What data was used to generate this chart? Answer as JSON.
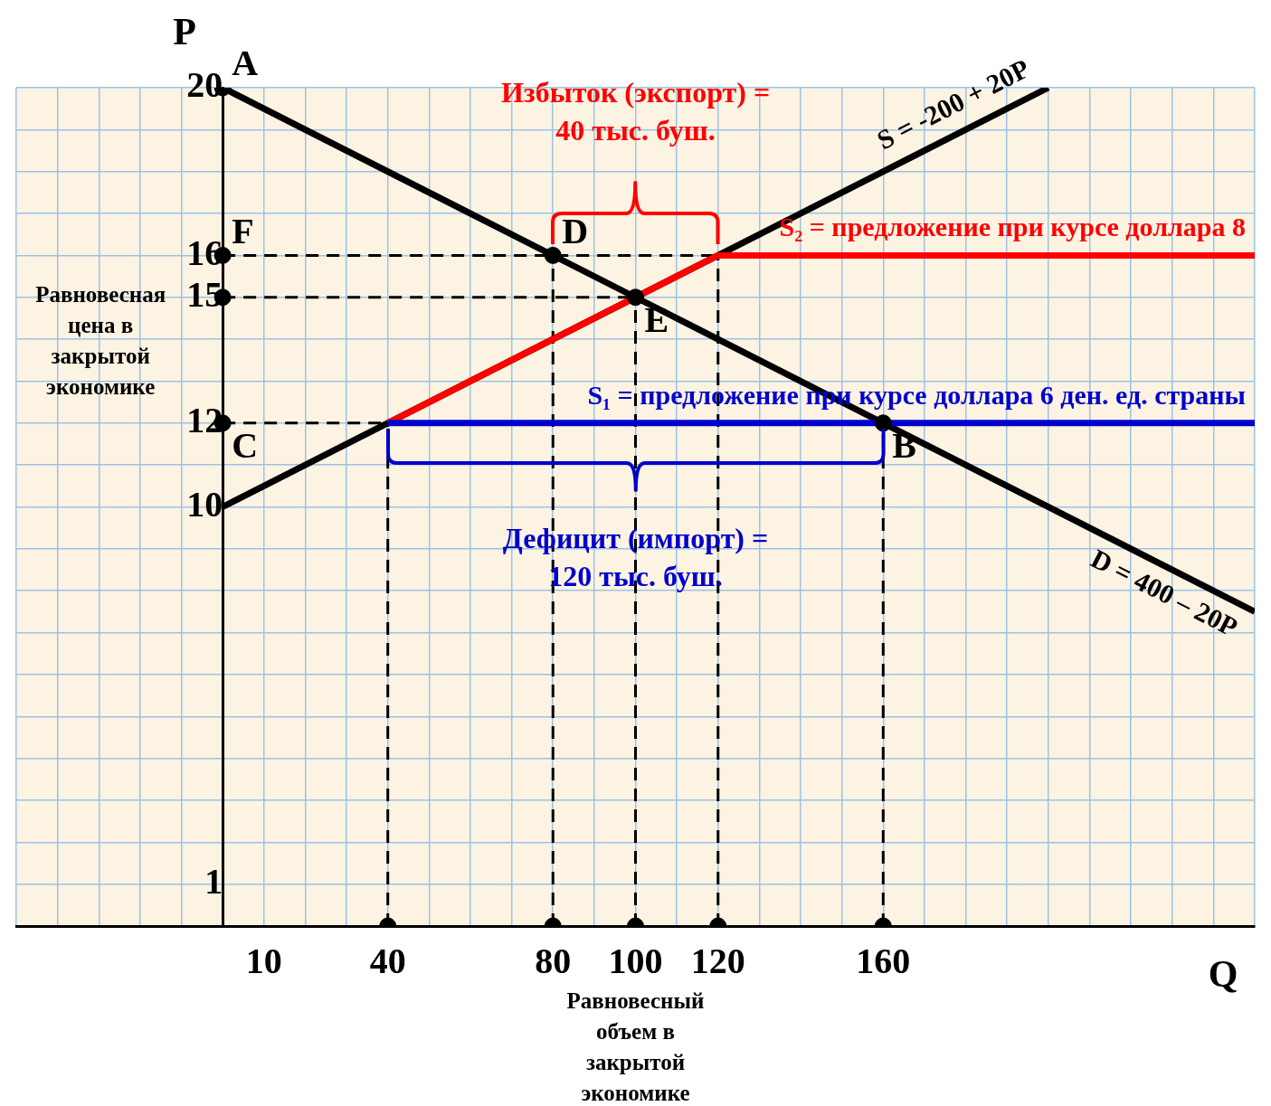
{
  "chart_data": {
    "type": "line",
    "xlabel": "Q",
    "ylabel": "P",
    "xlim": [
      -50,
      250
    ],
    "ylim": [
      0,
      20
    ],
    "xticks": [
      {
        "value": -50,
        "label": null
      },
      {
        "value": -40,
        "label": null
      },
      {
        "value": -30,
        "label": null
      },
      {
        "value": -20,
        "label": null
      },
      {
        "value": -10,
        "label": null
      },
      {
        "value": 0,
        "label": null
      },
      10,
      {
        "value": 20,
        "label": null
      },
      {
        "value": 30,
        "label": null
      },
      40,
      {
        "value": 50,
        "label": null
      },
      {
        "value": 60,
        "label": null
      },
      {
        "value": 70,
        "label": null
      },
      80,
      {
        "value": 90,
        "label": null
      },
      100,
      {
        "value": 110,
        "label": null
      },
      120,
      {
        "value": 130,
        "label": null
      },
      {
        "value": 140,
        "label": null
      },
      {
        "value": 150,
        "label": null
      },
      160,
      {
        "value": 170,
        "label": null
      },
      {
        "value": 180,
        "label": null
      },
      {
        "value": 190,
        "label": null
      },
      {
        "value": 200,
        "label": null
      },
      {
        "value": 210,
        "label": null
      },
      {
        "value": 220,
        "label": null
      },
      {
        "value": 230,
        "label": null
      },
      {
        "value": 240,
        "label": null
      },
      {
        "value": 250,
        "label": null
      }
    ],
    "yticks": [
      {
        "value": 0,
        "label": null
      },
      1,
      {
        "value": 2,
        "label": null
      },
      {
        "value": 3,
        "label": null
      },
      {
        "value": 4,
        "label": null
      },
      {
        "value": 5,
        "label": null
      },
      {
        "value": 6,
        "label": null
      },
      {
        "value": 7,
        "label": null
      },
      {
        "value": 8,
        "label": null
      },
      {
        "value": 9,
        "label": null
      },
      10,
      {
        "value": 11,
        "label": null
      },
      12,
      {
        "value": 13,
        "label": null
      },
      {
        "value": 14,
        "label": null
      },
      15,
      16,
      {
        "value": 17,
        "label": null
      },
      {
        "value": 18,
        "label": null
      },
      {
        "value": 19,
        "label": null
      },
      20
    ],
    "grid": true,
    "series": [
      {
        "color": "#000000",
        "line_style": "dashed",
        "x": [
          0,
          120
        ],
        "values": [
          16,
          16
        ]
      },
      {
        "color": "#000000",
        "line_style": "dashed",
        "x": [
          0,
          100
        ],
        "values": [
          15,
          15
        ]
      },
      {
        "color": "#000000",
        "line_style": "dashed",
        "x": [
          0,
          40
        ],
        "values": [
          12,
          12
        ]
      },
      {
        "color": "#000000",
        "line_style": "dashed",
        "x": [
          40,
          40
        ],
        "values": [
          0,
          12
        ]
      },
      {
        "color": "#000000",
        "line_style": "dashed",
        "x": [
          80,
          80
        ],
        "values": [
          0,
          16
        ]
      },
      {
        "color": "#000000",
        "line_style": "dashed",
        "x": [
          100,
          100
        ],
        "values": [
          0,
          15
        ]
      },
      {
        "color": "#000000",
        "line_style": "dashed",
        "x": [
          120,
          120
        ],
        "values": [
          0,
          16
        ]
      },
      {
        "color": "#000000",
        "line_style": "dashed",
        "x": [
          160,
          160
        ],
        "values": [
          0,
          12
        ]
      },
      {
        "name": "D = 400 – 20P",
        "color": "#000000",
        "x": [
          0,
          100,
          160,
          250
        ],
        "values": [
          20,
          15,
          12,
          7.5
        ]
      },
      {
        "name": "S = -200 + 20P",
        "color": "#000000",
        "x": [
          0,
          200
        ],
        "values": [
          10,
          20
        ]
      },
      {
        "name": "S₂ = предложение при курсе доллара 8",
        "color": "#ff0000",
        "x": [
          40,
          120,
          250
        ],
        "values": [
          12,
          16,
          16
        ]
      },
      {
        "name": "S₁ = предложение при курсе доллара 6 ден. ед. страны",
        "color": "#0000cc",
        "x": [
          40,
          250
        ],
        "values": [
          12,
          12
        ]
      },
      {
        "type": "scatter",
        "marker": "circle",
        "color": "#000000",
        "x": [
          0,
          0,
          0,
          0,
          80,
          100,
          160,
          40,
          80,
          100,
          120,
          160
        ],
        "values": [
          20,
          16,
          15,
          12,
          16,
          15,
          12,
          0,
          0,
          0,
          0,
          0
        ]
      }
    ],
    "annotations": [
      "Избыток (экспорт) =\n40 тыс. буш.",
      "Дефицит (импорт) =\n120 тыс. буш.",
      {
        "text": "A",
        "x": 0,
        "y": 20
      },
      {
        "text": "F",
        "x": 0,
        "y": 16
      },
      {
        "text": "C",
        "x": 0,
        "y": 12
      },
      {
        "text": "D",
        "x": 80,
        "y": 16
      },
      {
        "text": "E",
        "x": 100,
        "y": 15
      },
      {
        "text": "B",
        "x": 160,
        "y": 12
      },
      {
        "text": "Равновесная цена в закрытой экономике",
        "x": 0,
        "y": 15
      },
      {
        "text": "Равновесный объем в закрытой экономике",
        "x": 100,
        "y": 0
      }
    ]
  }
}
